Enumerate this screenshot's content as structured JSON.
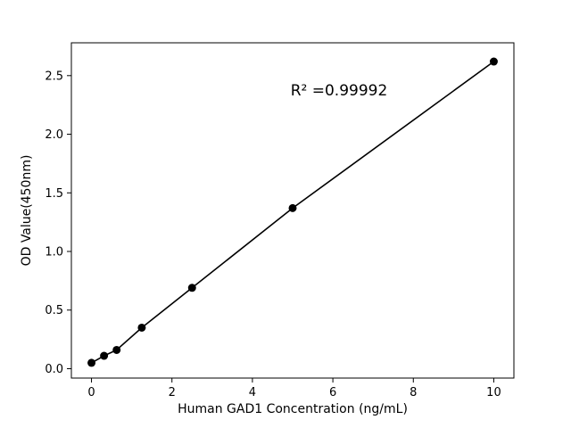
{
  "chart_data": {
    "type": "scatter",
    "x": [
      0,
      0.3125,
      0.625,
      1.25,
      2.5,
      5,
      10
    ],
    "y": [
      0.05,
      0.11,
      0.16,
      0.35,
      0.69,
      1.37,
      2.62
    ],
    "title": "",
    "xlabel": "Human GAD1 Concentration (ng/mL)",
    "ylabel": "OD Value(450nm)",
    "annotation": "R² =0.99992",
    "xlim": [
      -0.5,
      10.5
    ],
    "ylim": [
      -0.08,
      2.78
    ],
    "xticks": [
      0,
      2,
      4,
      6,
      8,
      10
    ],
    "yticks": [
      0.0,
      0.5,
      1.0,
      1.5,
      2.0,
      2.5
    ],
    "line_between_points": true,
    "grid": false,
    "legend": "none",
    "marker_color": "#000000",
    "line_color": "#000000",
    "axis_color": "#000000",
    "background": "#ffffff"
  }
}
